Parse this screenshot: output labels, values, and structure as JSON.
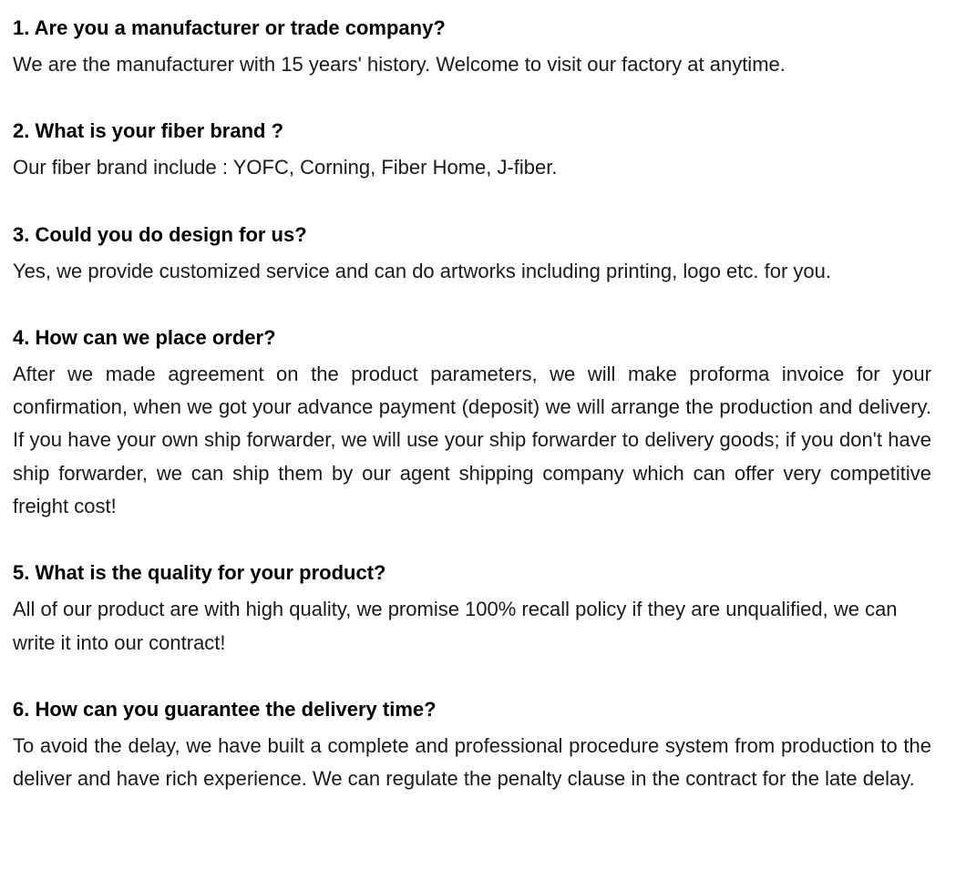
{
  "faq": {
    "items": [
      {
        "question": "1. Are you a manufacturer or trade company?",
        "answer": "We are the manufacturer with 15 years' history. Welcome to visit our factory at anytime.",
        "justify": false
      },
      {
        "question": "2. What is your fiber brand ?",
        "answer": "Our fiber brand include : YOFC, Corning, Fiber Home, J-fiber.",
        "justify": false
      },
      {
        "question": "3. Could you do design for us?",
        "answer": "Yes, we provide customized service and can do artworks including printing, logo etc. for you.",
        "justify": false
      },
      {
        "question": "4. How can we place order?",
        "answer": "After we made agreement on the product parameters, we will make proforma invoice for your confirmation, when we got your advance payment (deposit) we will arrange the production and delivery. If you have your own ship forwarder, we will use your ship forwarder to delivery goods; if you don't have ship forwarder, we can ship them by our agent shipping company which can offer very competitive freight cost!",
        "justify": true
      },
      {
        "question": "5. What is the quality for your product?",
        "answer": "All of our product are with high quality, we promise 100% recall policy if they are unqualified, we can write it into our contract!",
        "justify": false
      },
      {
        "question": "6. How can you guarantee the delivery time?",
        "answer": "To avoid the delay, we have built a complete and professional procedure system from production to the deliver and have rich experience. We can regulate the penalty clause in the contract for the late delay.",
        "justify": true
      }
    ]
  },
  "styling": {
    "background_color": "#ffffff",
    "question_color": "#000000",
    "answer_color": "#1a1a1a",
    "question_fontsize": 22,
    "answer_fontsize": 22,
    "question_fontweight": "bold",
    "answer_fontweight": "normal",
    "line_height": 1.65,
    "item_spacing": 38
  }
}
